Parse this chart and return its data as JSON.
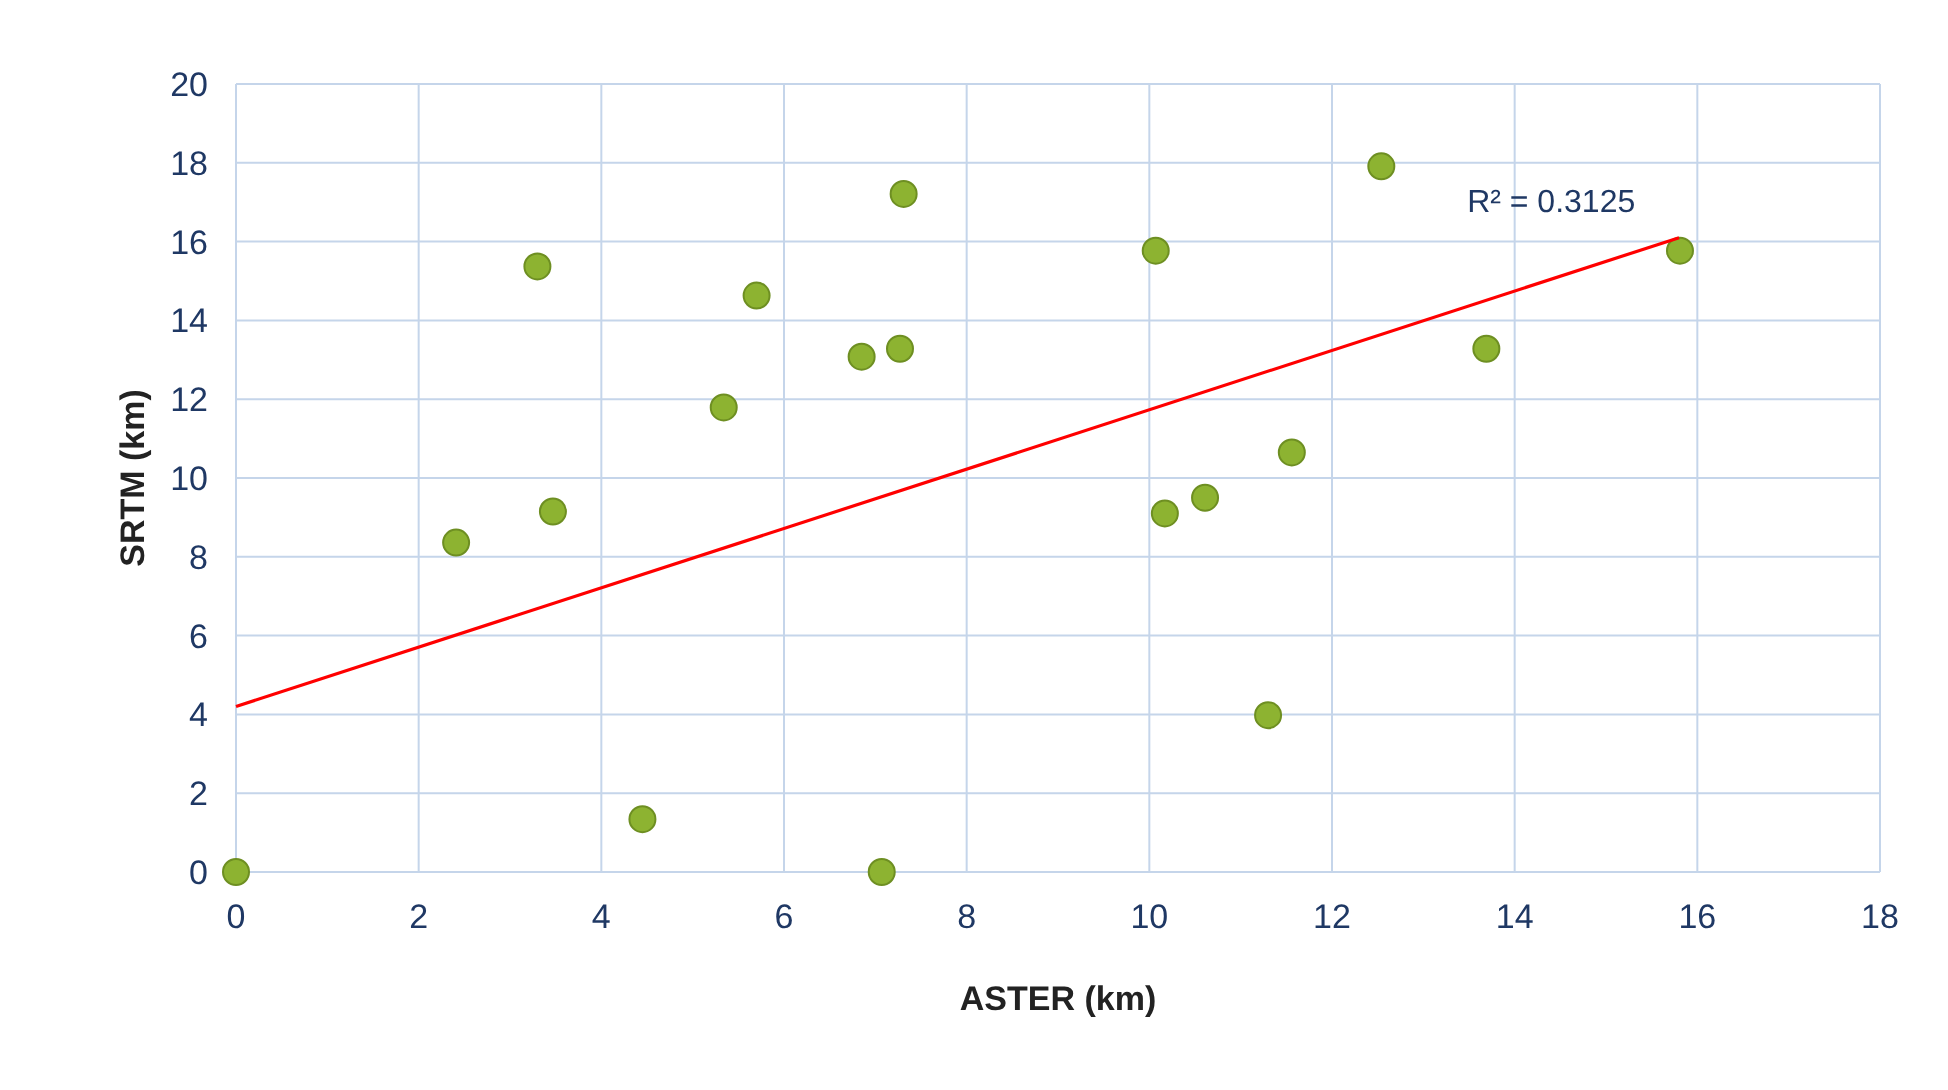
{
  "chart_data": {
    "type": "scatter",
    "xlabel": "ASTER (km)",
    "ylabel": "SRTM (km)",
    "xlim": [
      0,
      18
    ],
    "xticks": [
      0,
      2,
      4,
      6,
      8,
      10,
      12,
      14,
      16,
      18
    ],
    "ylim": [
      0,
      20
    ],
    "yticks": [
      0,
      2,
      4,
      6,
      8,
      10,
      12,
      14,
      16,
      18,
      20
    ],
    "grid": true,
    "marker": "circle",
    "series": [
      {
        "color": "#8db331",
        "x": [
          0,
          2.41,
          3.3,
          3.47,
          4.45,
          5.34,
          5.7,
          6.85,
          7.07,
          7.27,
          7.31,
          10.07,
          10.17,
          10.61,
          11.3,
          11.56,
          12.54,
          13.69,
          15.81
        ],
        "values": [
          0,
          8.36,
          15.37,
          9.15,
          1.34,
          11.79,
          14.63,
          13.08,
          0,
          13.28,
          17.21,
          15.77,
          9.1,
          9.5,
          3.98,
          10.65,
          17.91,
          13.28,
          15.77
        ]
      },
      {
        "type": "line",
        "color": "#ff0000",
        "x": [
          0,
          15.8
        ],
        "values": [
          4.2,
          16.1
        ],
        "line_style": "solid",
        "marker": "none"
      }
    ],
    "annotations": [
      "R² = 0.3125"
    ]
  }
}
